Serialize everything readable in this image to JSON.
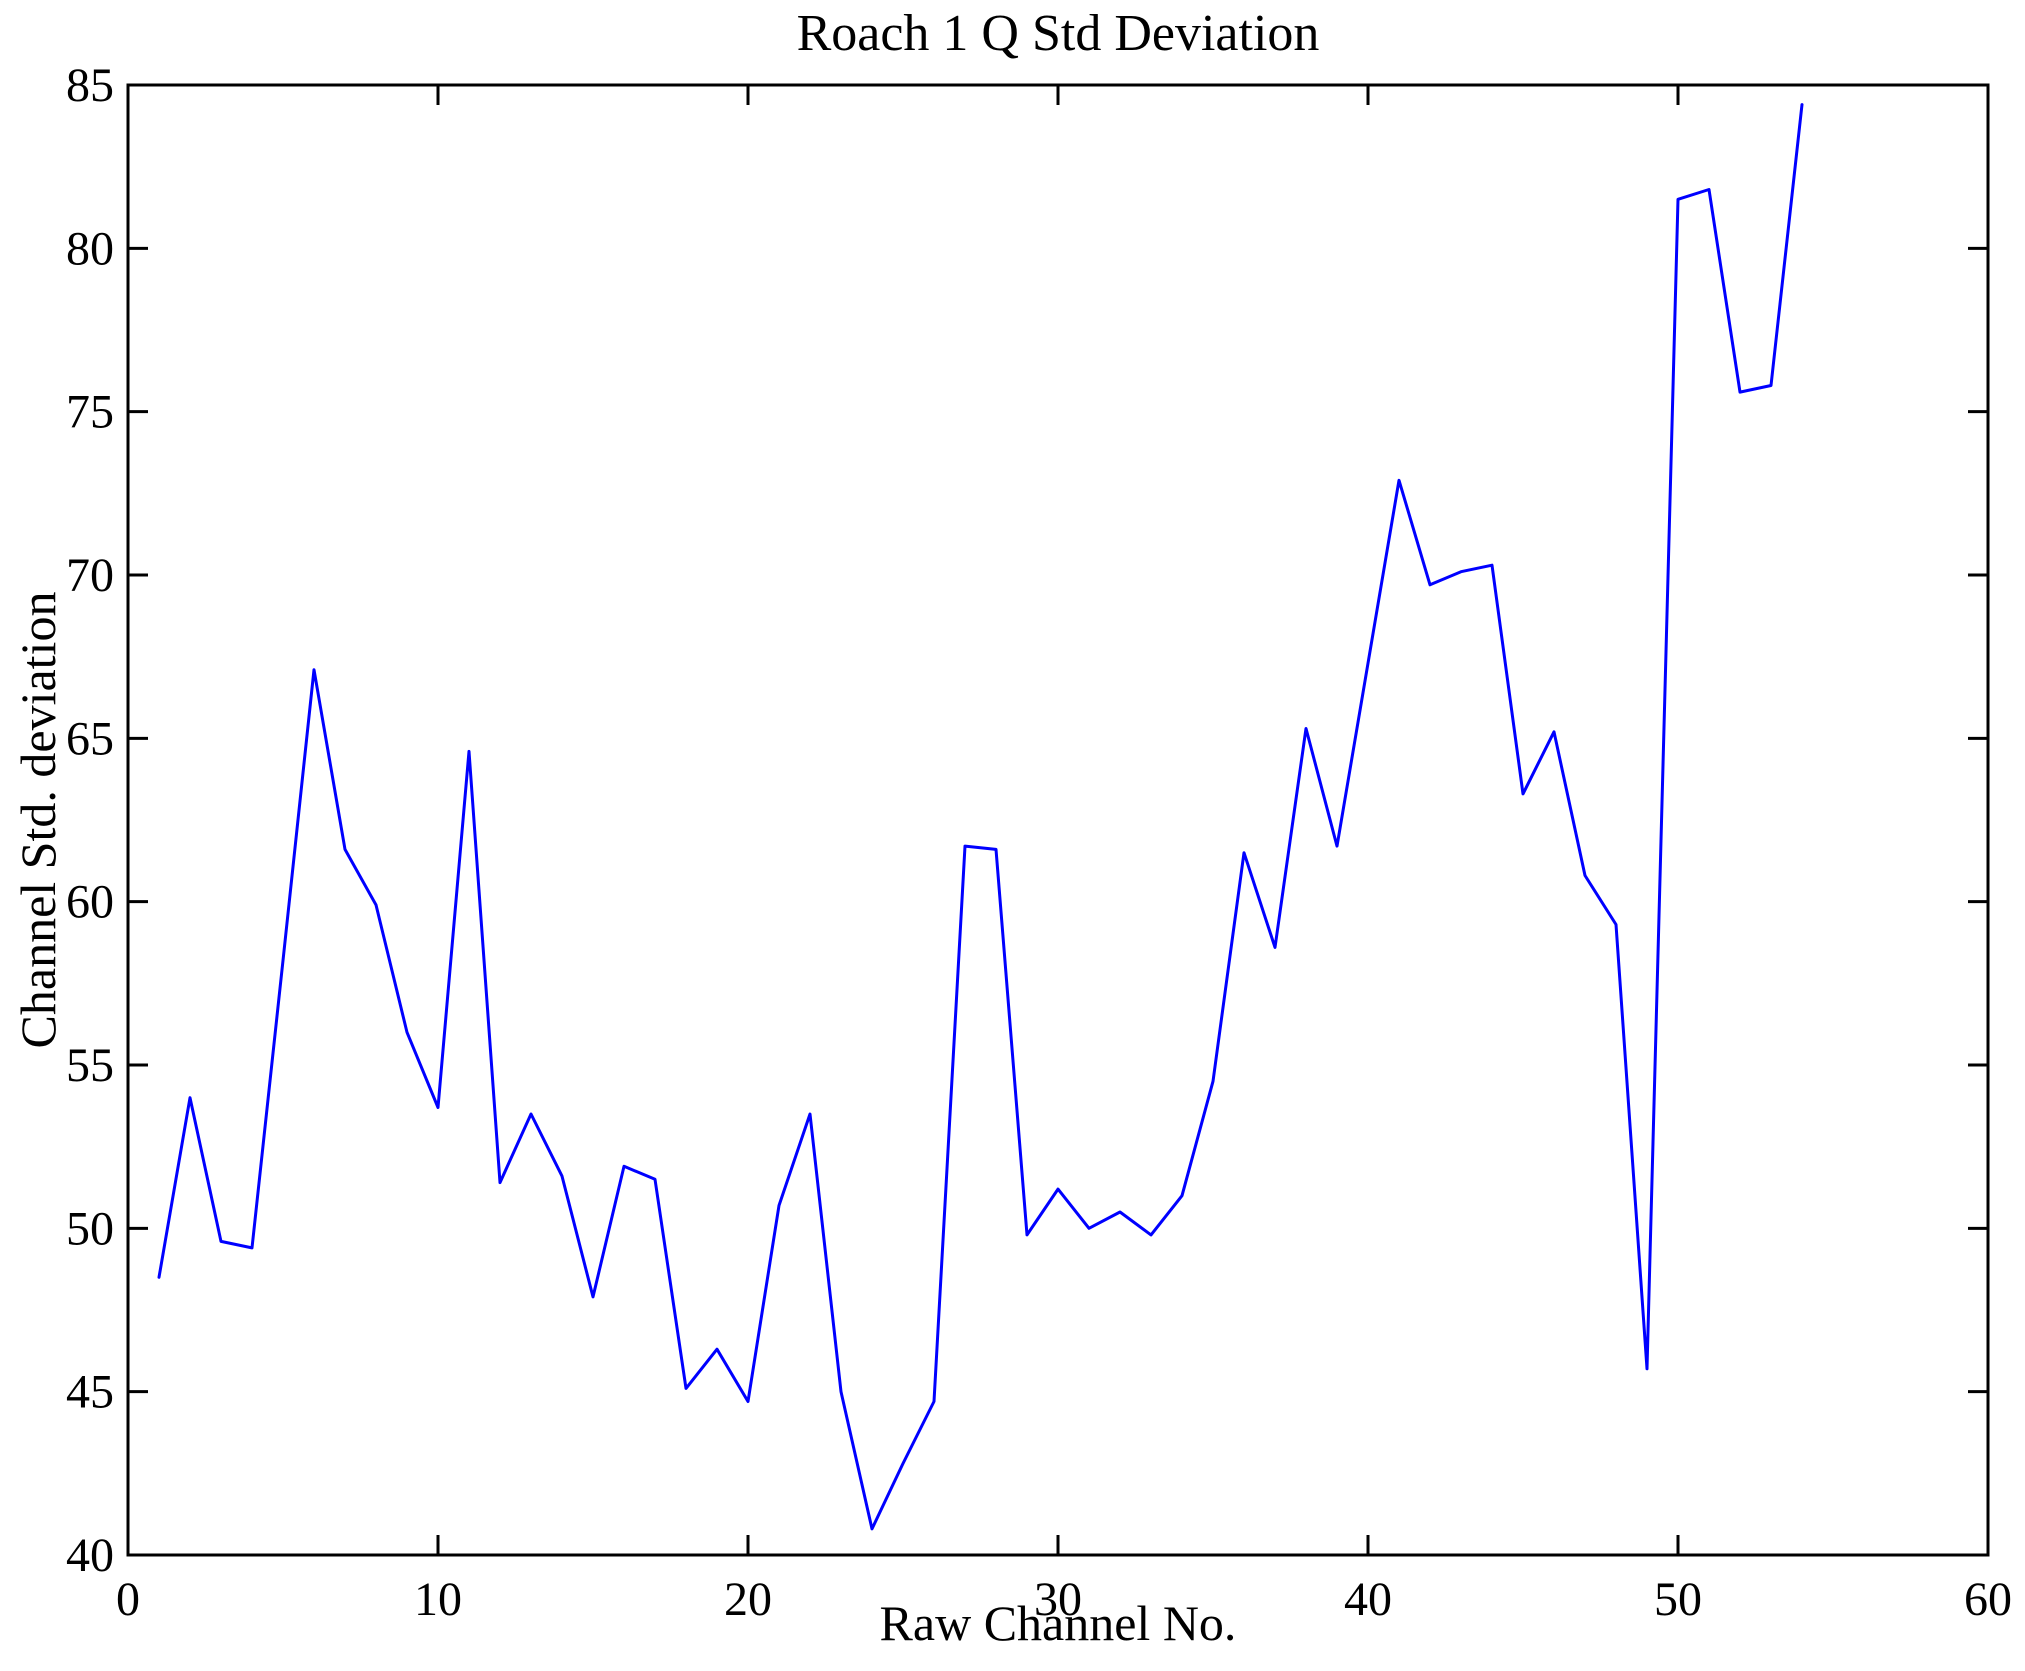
{
  "chart_data": {
    "type": "line",
    "title": "Roach 1 Q Std Deviation",
    "xlabel": "Raw Channel No.",
    "ylabel": "Channel Std. deviation",
    "xlim": [
      0,
      60
    ],
    "ylim": [
      40,
      85
    ],
    "xticks": [
      0,
      10,
      20,
      30,
      40,
      50,
      60
    ],
    "yticks": [
      40,
      45,
      50,
      55,
      60,
      65,
      70,
      75,
      80,
      85
    ],
    "grid": false,
    "legend": "none",
    "line_color": "#0000ff",
    "frame_color": "#000000",
    "background_color": "#ffffff",
    "x": [
      1,
      2,
      3,
      4,
      5,
      6,
      7,
      8,
      9,
      10,
      11,
      12,
      13,
      14,
      15,
      16,
      17,
      18,
      19,
      20,
      21,
      22,
      23,
      24,
      25,
      26,
      27,
      28,
      29,
      30,
      31,
      32,
      33,
      34,
      35,
      36,
      37,
      38,
      39,
      40,
      41,
      42,
      43,
      44,
      45,
      46,
      47,
      48,
      49,
      50,
      51,
      52,
      53,
      54
    ],
    "y": [
      48.5,
      54.0,
      49.6,
      49.4,
      58.2,
      67.1,
      61.6,
      59.9,
      56.0,
      53.7,
      64.6,
      51.4,
      53.5,
      51.6,
      47.9,
      51.9,
      51.5,
      45.1,
      46.3,
      44.7,
      50.7,
      53.5,
      45.0,
      40.8,
      42.8,
      44.7,
      61.7,
      61.6,
      49.8,
      51.2,
      50.0,
      50.5,
      49.8,
      51.0,
      54.5,
      61.5,
      58.6,
      65.3,
      61.7,
      67.3,
      72.9,
      69.7,
      70.1,
      70.3,
      63.3,
      65.2,
      60.8,
      59.3,
      45.7,
      81.5,
      81.8,
      75.6,
      75.8,
      84.4
    ]
  }
}
